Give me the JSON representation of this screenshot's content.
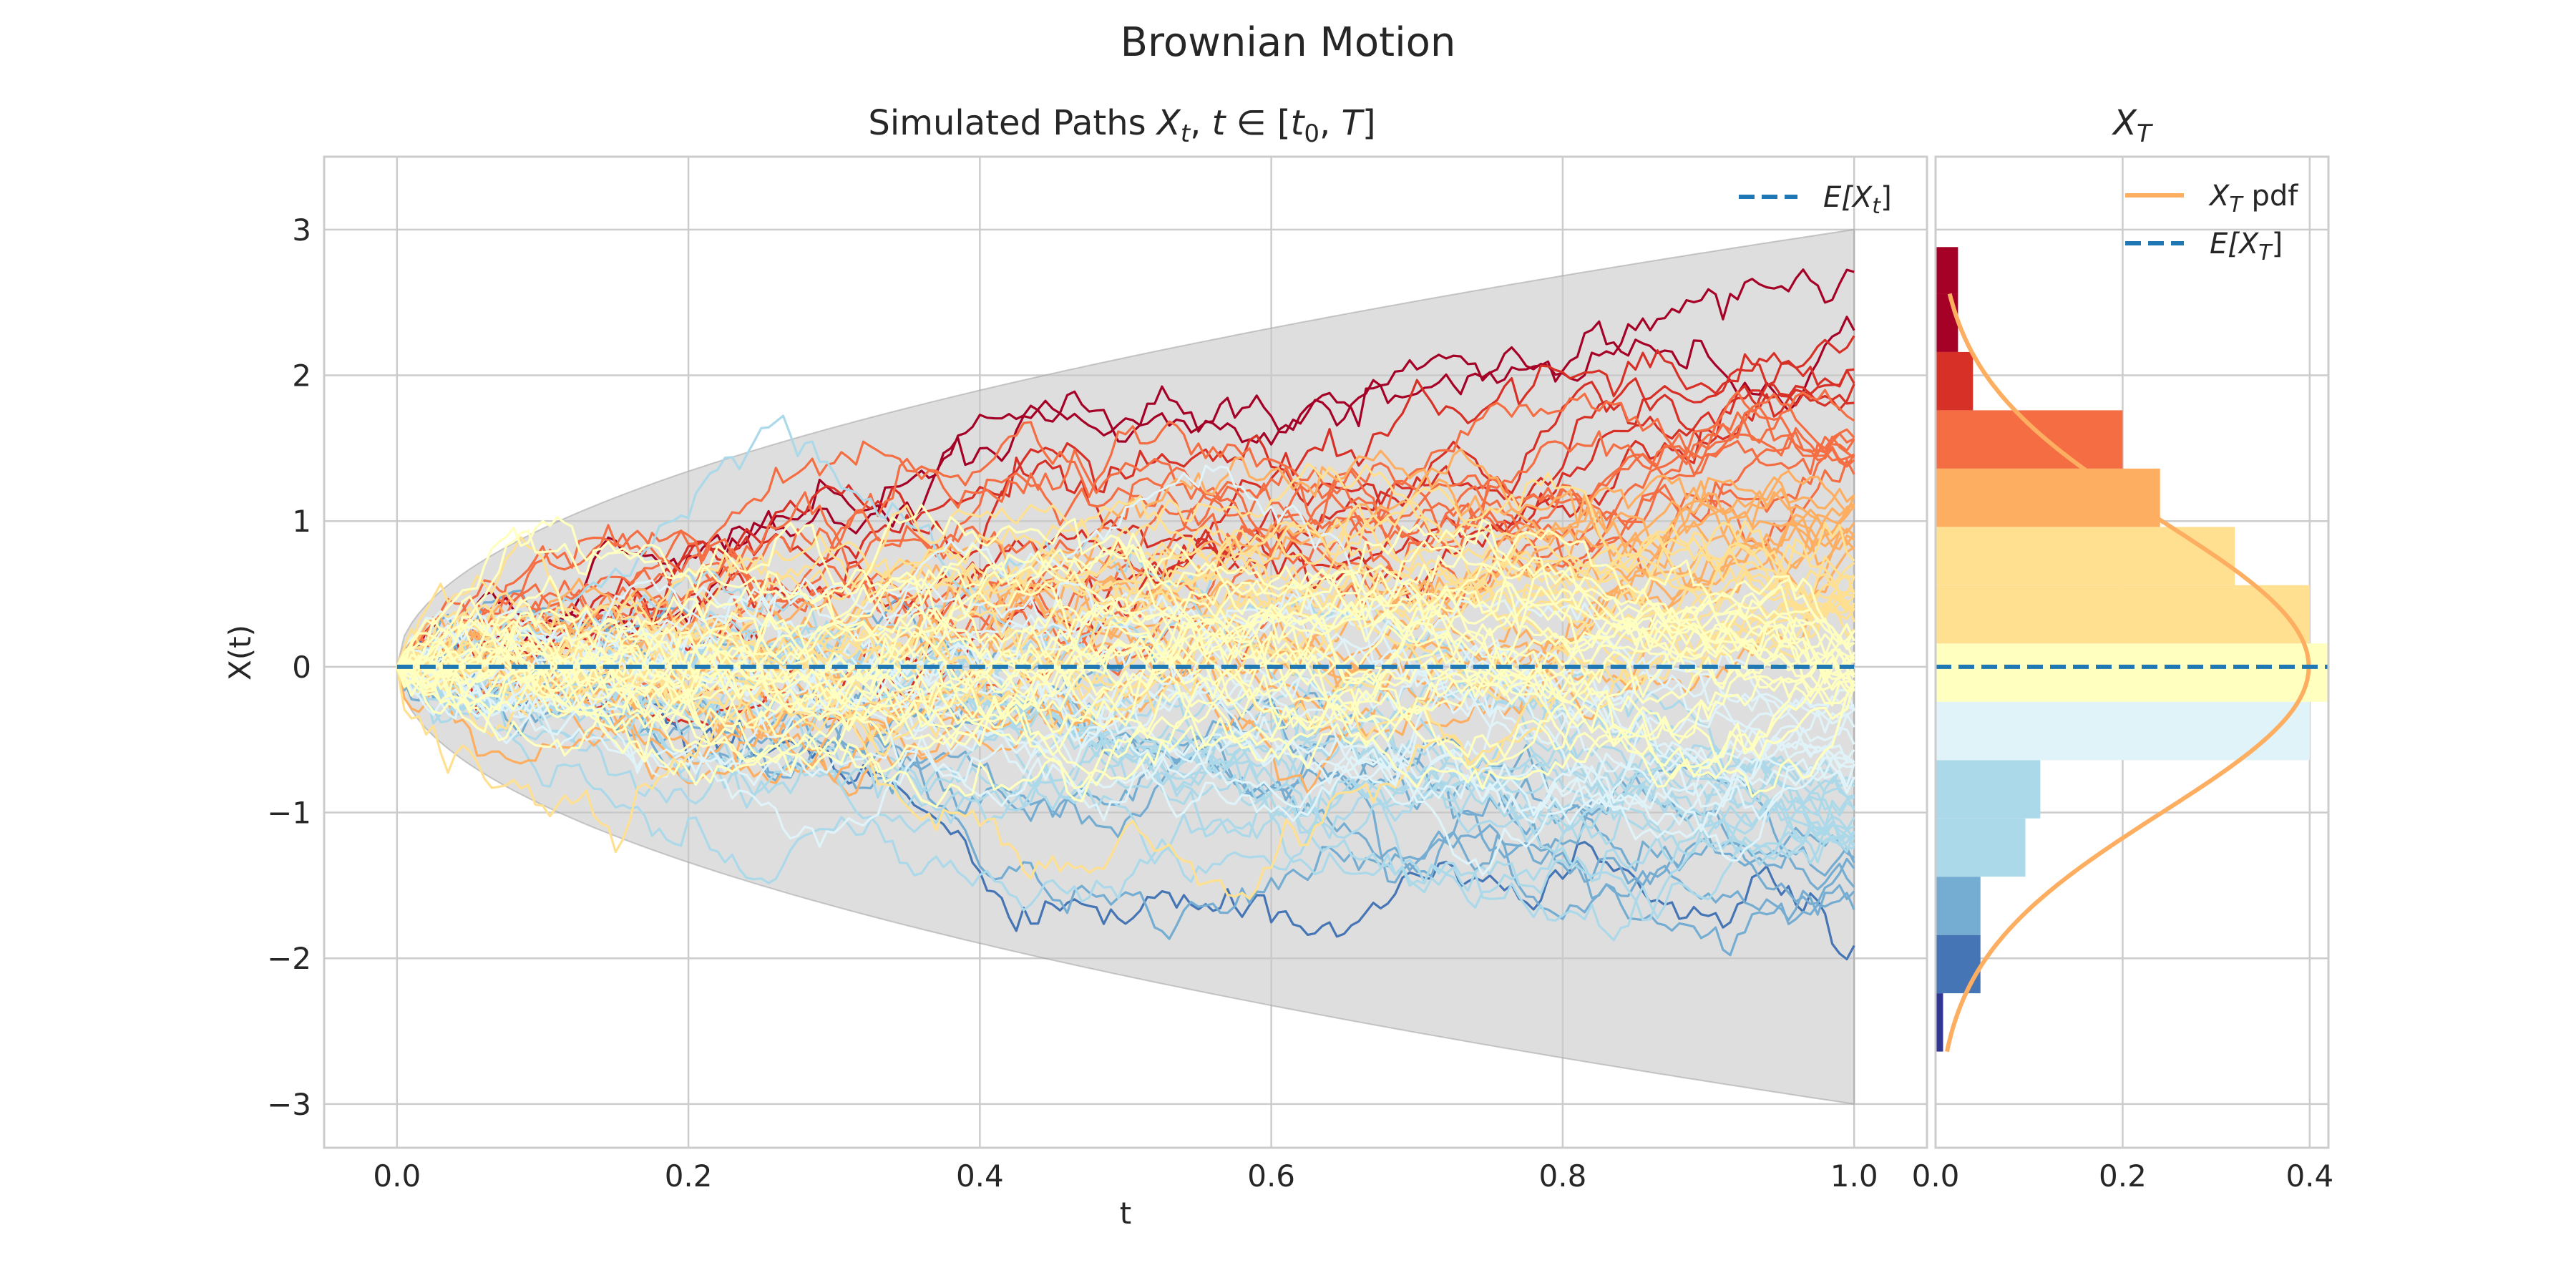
{
  "figure": {
    "title": "Brownian Motion"
  },
  "colors": {
    "paths": [
      "#313695",
      "#4575b4",
      "#74add1",
      "#abd9e9",
      "#e0f3f8",
      "#ffffbf",
      "#fee090",
      "#fdae61",
      "#f46d43",
      "#d73027",
      "#a50026"
    ],
    "band": "#c8c8c8",
    "mean_line": "#1f77b4",
    "pdf_line": "#fdae61",
    "grid": "#cccccc",
    "frame": "#cccccc"
  },
  "chart_data": [
    {
      "type": "line",
      "title": "Simulated Paths X_t, t ∈ [t_0, T]",
      "title_parts": {
        "prefix": "Simulated Paths ",
        "x": "X",
        "x_sub": "t",
        "comma": ", ",
        "t": "t",
        "in": " ∈ [",
        "t0": "t",
        "t0_sub": "0",
        "sep": ", ",
        "T": "T",
        "close": "]"
      },
      "xlabel": "t",
      "ylabel": "X(t)",
      "xlim": [
        -0.05,
        1.05
      ],
      "ylim": [
        -3.3,
        3.5
      ],
      "xticks": [
        0.0,
        0.2,
        0.4,
        0.6,
        0.8,
        1.0
      ],
      "xtick_labels": [
        "0.0",
        "0.2",
        "0.4",
        "0.6",
        "0.8",
        "1.0"
      ],
      "yticks": [
        3,
        2,
        1,
        0,
        -1,
        -2,
        -3
      ],
      "ytick_labels": [
        "3",
        "2",
        "1",
        "0",
        "−1",
        "−2",
        "−3"
      ],
      "n_paths": 100,
      "n_steps": 200,
      "band": {
        "description": "±3·sqrt(t) envelope",
        "k": 3
      },
      "mean": 0,
      "legend": {
        "label": "E[X_t]",
        "E": "E[",
        "X": "X",
        "sub": "t",
        "close": "]",
        "position": "upper right"
      },
      "grid": true
    },
    {
      "type": "bar",
      "orientation": "horizontal",
      "title": "X_T",
      "title_parts": {
        "x": "X",
        "sub": "T"
      },
      "xlim": [
        0,
        0.42
      ],
      "ylim": [
        -3.3,
        3.5
      ],
      "xticks": [
        0.0,
        0.2,
        0.4
      ],
      "xtick_labels": [
        "0.0",
        "0.2",
        "0.4"
      ],
      "bin_edges": [
        -2.64,
        -2.24,
        -1.84,
        -1.44,
        -1.04,
        -0.64,
        -0.24,
        0.16,
        0.56,
        0.96,
        1.36,
        1.76,
        2.16,
        2.56,
        2.88
      ],
      "densities": [
        0.008,
        0.048,
        0.048,
        0.096,
        0.112,
        0.4,
        0.42,
        0.4,
        0.32,
        0.24,
        0.2,
        0.04,
        0.024,
        0.024
      ],
      "pdf": {
        "mean": 0,
        "std": 1,
        "range": [
          -2.64,
          2.56
        ]
      },
      "mean": 0,
      "legend": [
        {
          "label": "X_T pdf",
          "x": "X",
          "sub": "T",
          "suffix": " pdf"
        },
        {
          "label": "E[X_T]",
          "E": "E[",
          "x": "X",
          "sub": "T",
          "close": "]"
        }
      ],
      "grid": true
    }
  ]
}
